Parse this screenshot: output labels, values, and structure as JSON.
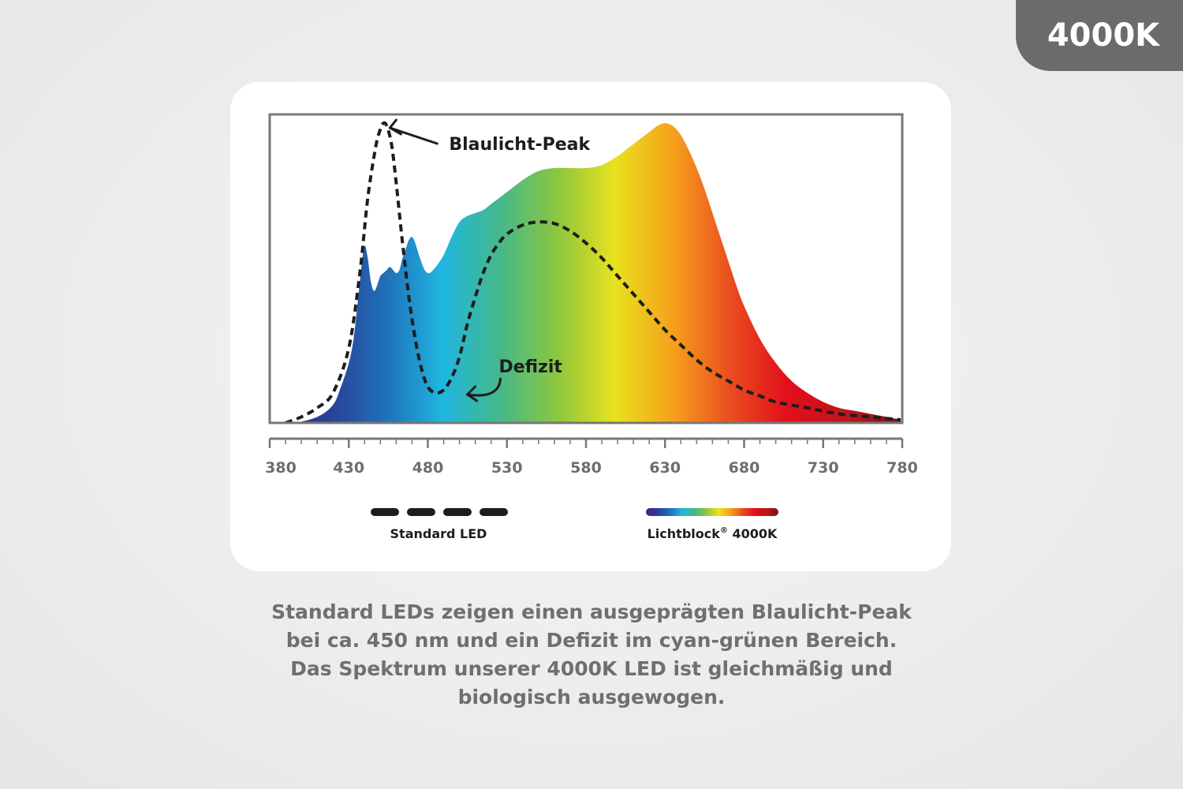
{
  "badge": {
    "label": "4000K"
  },
  "chart_data": {
    "type": "line",
    "xlabel": "",
    "ylabel": "",
    "xlim": [
      380,
      780
    ],
    "x_ticks": [
      380,
      430,
      480,
      530,
      580,
      630,
      680,
      730,
      780
    ],
    "y_ticks_shown": false,
    "grid": false,
    "series": [
      {
        "name": "Standard LED",
        "style": "dashed",
        "color": "#1d1d1d",
        "x": [
          390,
          400,
          410,
          420,
          430,
          437,
          442,
          447,
          450,
          452,
          454,
          457,
          460,
          464,
          468,
          472,
          476,
          480,
          485,
          490,
          495,
          500,
          505,
          510,
          515,
          520,
          525,
          530,
          540,
          550,
          560,
          570,
          580,
          590,
          600,
          610,
          620,
          630,
          640,
          650,
          660,
          670,
          680,
          690,
          700,
          720,
          740,
          760,
          780
        ],
        "y": [
          0.0,
          0.02,
          0.05,
          0.1,
          0.25,
          0.5,
          0.75,
          0.92,
          0.98,
          1.0,
          0.99,
          0.93,
          0.8,
          0.6,
          0.42,
          0.28,
          0.18,
          0.12,
          0.1,
          0.11,
          0.15,
          0.22,
          0.33,
          0.42,
          0.5,
          0.56,
          0.6,
          0.63,
          0.66,
          0.67,
          0.665,
          0.64,
          0.6,
          0.55,
          0.49,
          0.43,
          0.37,
          0.31,
          0.26,
          0.21,
          0.17,
          0.14,
          0.11,
          0.09,
          0.07,
          0.05,
          0.03,
          0.02,
          0.01
        ]
      },
      {
        "name": "Lichtblock® 4000K",
        "style": "spectrum-filled",
        "x": [
          380,
          395,
          410,
          420,
          425,
          430,
          433,
          436,
          438,
          440,
          442,
          444,
          446,
          448,
          450,
          452,
          454,
          456,
          458,
          460,
          462,
          464,
          466,
          468,
          470,
          472,
          475,
          478,
          481,
          485,
          490,
          495,
          500,
          505,
          510,
          515,
          520,
          525,
          530,
          540,
          550,
          560,
          570,
          580,
          590,
          600,
          605,
          610,
          615,
          620,
          625,
          630,
          635,
          640,
          645,
          650,
          655,
          660,
          665,
          670,
          675,
          680,
          690,
          700,
          710,
          720,
          730,
          740,
          750,
          760,
          770,
          780
        ],
        "y": [
          0.0,
          0.0,
          0.02,
          0.06,
          0.12,
          0.2,
          0.28,
          0.42,
          0.52,
          0.59,
          0.55,
          0.47,
          0.44,
          0.46,
          0.49,
          0.5,
          0.51,
          0.52,
          0.51,
          0.5,
          0.51,
          0.55,
          0.58,
          0.61,
          0.62,
          0.6,
          0.55,
          0.51,
          0.5,
          0.52,
          0.56,
          0.62,
          0.67,
          0.69,
          0.7,
          0.71,
          0.73,
          0.75,
          0.77,
          0.81,
          0.84,
          0.85,
          0.85,
          0.85,
          0.86,
          0.89,
          0.91,
          0.93,
          0.95,
          0.97,
          0.99,
          1.0,
          0.99,
          0.96,
          0.91,
          0.85,
          0.78,
          0.7,
          0.62,
          0.54,
          0.46,
          0.39,
          0.28,
          0.2,
          0.14,
          0.1,
          0.07,
          0.05,
          0.04,
          0.03,
          0.02,
          0.01
        ]
      }
    ],
    "annotations": [
      {
        "text": "Blaulicht-Peak",
        "x": 452,
        "y": 1.0
      },
      {
        "text": "Defizit",
        "x": 490,
        "y": 0.1
      }
    ],
    "legend": {
      "placement": "bottom",
      "items": [
        {
          "label": "Standard LED",
          "symbol": "dashed-line"
        },
        {
          "label": "Lichtblock",
          "superscript": "®",
          "label_suffix": " 4000K",
          "symbol": "spectrum-bar"
        }
      ]
    },
    "spectrum_colors": [
      "#3a2a87",
      "#2b3f94",
      "#1f6fb8",
      "#1fb6e0",
      "#45b88a",
      "#8cc63f",
      "#e8e21e",
      "#f6a21c",
      "#ea4e1f",
      "#e20f1b",
      "#c3141b",
      "#7a1416"
    ]
  },
  "caption": {
    "lines": [
      "Standard LEDs zeigen einen ausgeprägten Blaulicht-Peak",
      "bei ca. 450 nm und ein Defizit im cyan-grünen Bereich.",
      "Das Spektrum unserer 4000K LED ist gleichmäßig und",
      "biologisch ausgewogen."
    ]
  }
}
